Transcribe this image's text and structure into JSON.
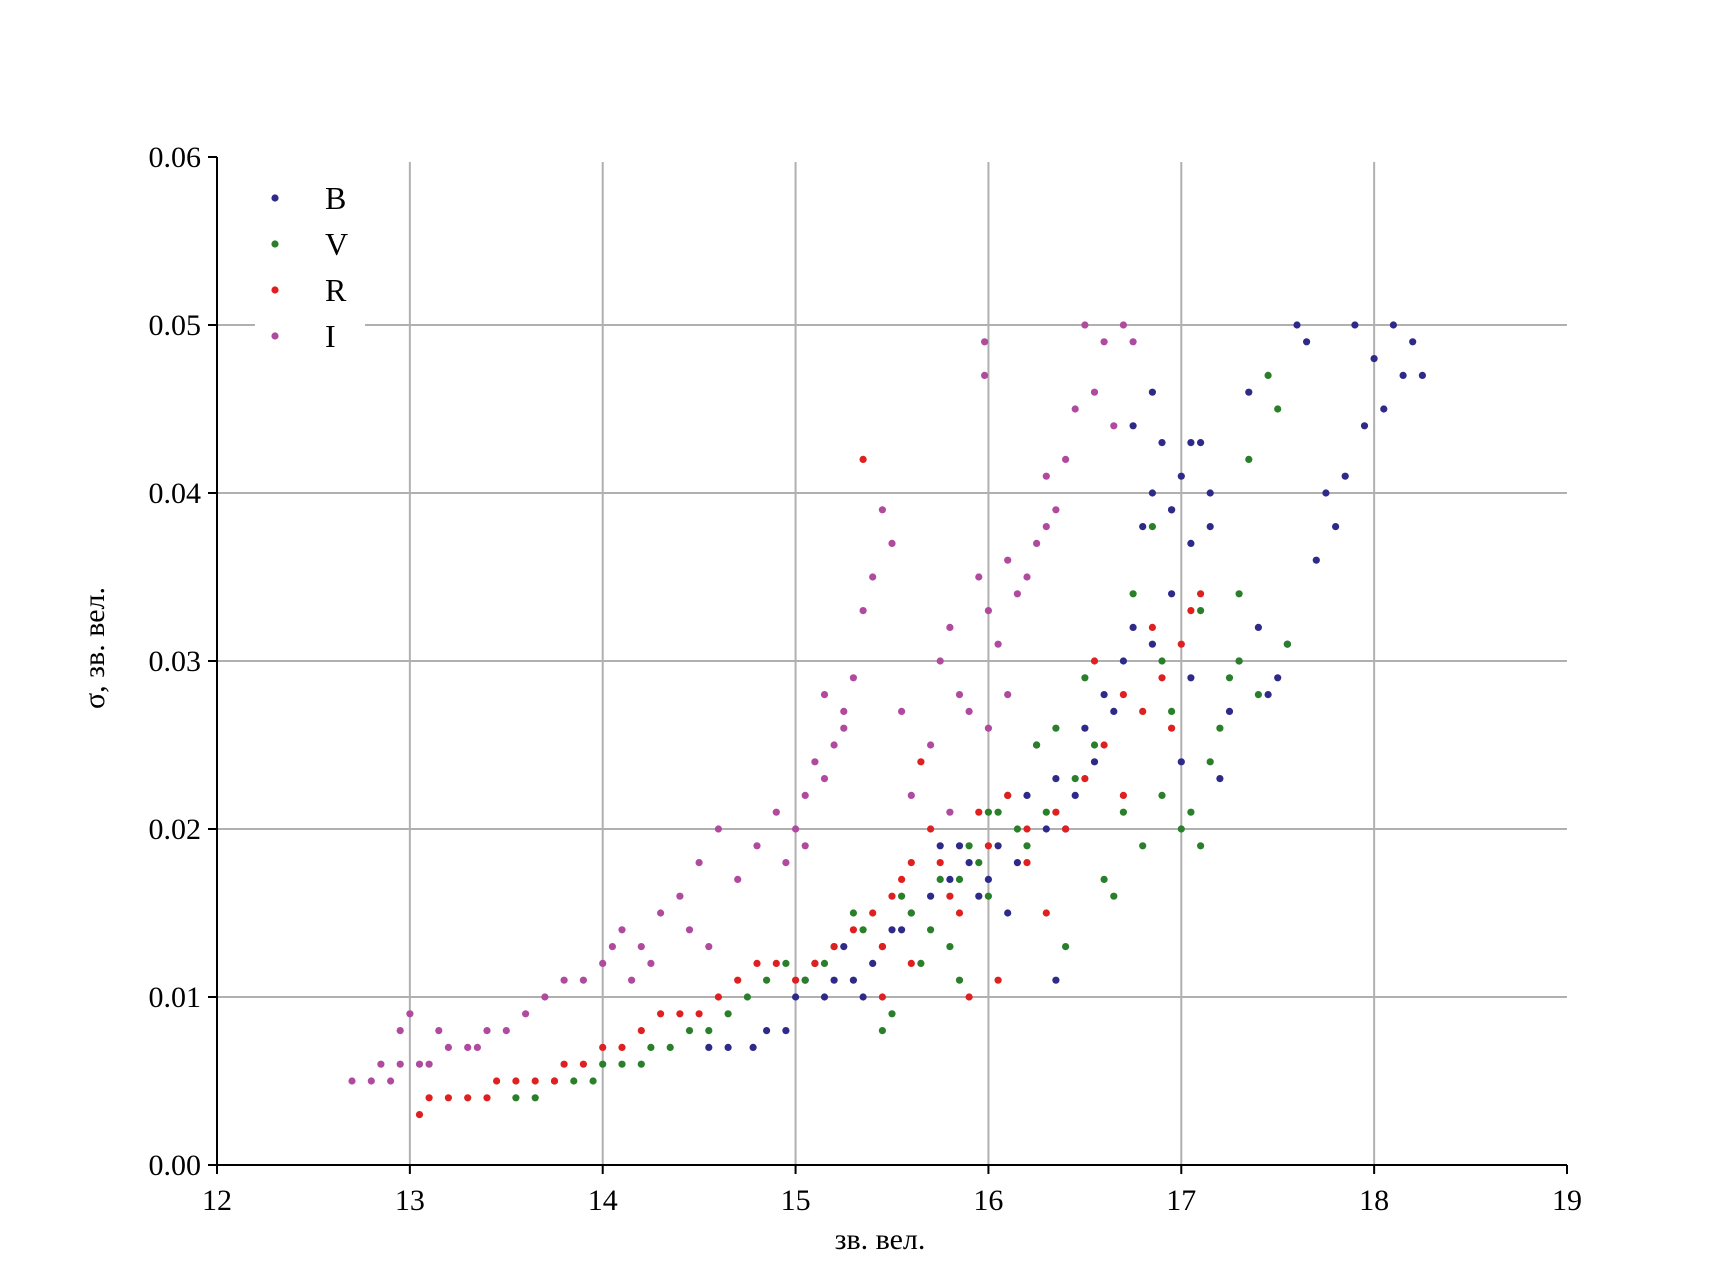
{
  "chart_data": {
    "type": "scatter",
    "title": "",
    "xlabel": "зв. вел.",
    "ylabel": "σ, зв. вел.",
    "xlim": [
      12,
      19
    ],
    "ylim": [
      0.0,
      0.06
    ],
    "x_ticks": [
      "12",
      "13",
      "14",
      "15",
      "16",
      "17",
      "18",
      "19"
    ],
    "y_ticks": [
      "0.00",
      "0.01",
      "0.02",
      "0.03",
      "0.04",
      "0.05",
      "0.06"
    ],
    "grid": true,
    "legend_position": "top-left",
    "series": [
      {
        "name": "B",
        "color": "#2e2a8a",
        "points": [
          [
            14.55,
            0.007
          ],
          [
            14.65,
            0.007
          ],
          [
            14.78,
            0.007
          ],
          [
            14.85,
            0.008
          ],
          [
            14.95,
            0.008
          ],
          [
            15.0,
            0.01
          ],
          [
            15.05,
            0.011
          ],
          [
            15.1,
            0.012
          ],
          [
            15.15,
            0.01
          ],
          [
            15.2,
            0.011
          ],
          [
            15.25,
            0.013
          ],
          [
            15.3,
            0.011
          ],
          [
            15.35,
            0.01
          ],
          [
            15.4,
            0.012
          ],
          [
            15.45,
            0.013
          ],
          [
            15.5,
            0.014
          ],
          [
            15.55,
            0.014
          ],
          [
            15.6,
            0.015
          ],
          [
            15.7,
            0.016
          ],
          [
            15.75,
            0.019
          ],
          [
            15.8,
            0.017
          ],
          [
            15.85,
            0.019
          ],
          [
            15.9,
            0.018
          ],
          [
            15.95,
            0.016
          ],
          [
            16.0,
            0.017
          ],
          [
            16.05,
            0.019
          ],
          [
            16.1,
            0.015
          ],
          [
            16.15,
            0.018
          ],
          [
            16.2,
            0.022
          ],
          [
            16.25,
            0.025
          ],
          [
            16.3,
            0.02
          ],
          [
            16.35,
            0.023
          ],
          [
            16.35,
            0.011
          ],
          [
            16.4,
            0.02
          ],
          [
            16.45,
            0.022
          ],
          [
            16.5,
            0.026
          ],
          [
            16.55,
            0.024
          ],
          [
            16.6,
            0.028
          ],
          [
            16.65,
            0.027
          ],
          [
            16.7,
            0.03
          ],
          [
            16.75,
            0.032
          ],
          [
            16.8,
            0.038
          ],
          [
            16.85,
            0.04
          ],
          [
            16.9,
            0.043
          ],
          [
            16.95,
            0.039
          ],
          [
            17.0,
            0.041
          ],
          [
            17.05,
            0.037
          ],
          [
            17.1,
            0.043
          ],
          [
            17.15,
            0.04
          ],
          [
            17.2,
            0.023
          ],
          [
            17.25,
            0.027
          ],
          [
            17.3,
            0.03
          ],
          [
            17.35,
            0.046
          ],
          [
            17.4,
            0.032
          ],
          [
            17.45,
            0.028
          ],
          [
            17.5,
            0.029
          ],
          [
            17.55,
            0.031
          ],
          [
            17.6,
            0.05
          ],
          [
            17.65,
            0.049
          ],
          [
            17.7,
            0.036
          ],
          [
            17.75,
            0.04
          ],
          [
            17.8,
            0.038
          ],
          [
            17.85,
            0.041
          ],
          [
            17.9,
            0.05
          ],
          [
            17.95,
            0.044
          ],
          [
            18.0,
            0.048
          ],
          [
            18.05,
            0.045
          ],
          [
            18.1,
            0.05
          ],
          [
            18.15,
            0.047
          ],
          [
            18.2,
            0.049
          ],
          [
            18.25,
            0.047
          ],
          [
            16.75,
            0.044
          ],
          [
            16.85,
            0.046
          ],
          [
            16.95,
            0.039
          ],
          [
            17.05,
            0.043
          ],
          [
            17.15,
            0.038
          ],
          [
            17.0,
            0.024
          ],
          [
            17.05,
            0.029
          ],
          [
            16.95,
            0.034
          ],
          [
            16.85,
            0.031
          ]
        ]
      },
      {
        "name": "V",
        "color": "#2a7f2a",
        "points": [
          [
            13.55,
            0.004
          ],
          [
            13.65,
            0.004
          ],
          [
            13.75,
            0.005
          ],
          [
            13.85,
            0.005
          ],
          [
            13.95,
            0.005
          ],
          [
            14.0,
            0.006
          ],
          [
            14.1,
            0.006
          ],
          [
            14.2,
            0.006
          ],
          [
            14.25,
            0.007
          ],
          [
            14.35,
            0.007
          ],
          [
            14.45,
            0.008
          ],
          [
            14.55,
            0.008
          ],
          [
            14.65,
            0.009
          ],
          [
            14.75,
            0.01
          ],
          [
            14.85,
            0.011
          ],
          [
            14.95,
            0.012
          ],
          [
            15.05,
            0.011
          ],
          [
            15.15,
            0.012
          ],
          [
            15.2,
            0.013
          ],
          [
            15.3,
            0.015
          ],
          [
            15.35,
            0.014
          ],
          [
            15.45,
            0.008
          ],
          [
            15.5,
            0.009
          ],
          [
            15.55,
            0.016
          ],
          [
            15.6,
            0.015
          ],
          [
            15.7,
            0.014
          ],
          [
            15.75,
            0.017
          ],
          [
            15.8,
            0.013
          ],
          [
            15.85,
            0.017
          ],
          [
            15.9,
            0.019
          ],
          [
            15.95,
            0.018
          ],
          [
            16.0,
            0.016
          ],
          [
            16.05,
            0.021
          ],
          [
            16.1,
            0.022
          ],
          [
            16.15,
            0.02
          ],
          [
            16.2,
            0.019
          ],
          [
            16.25,
            0.025
          ],
          [
            16.3,
            0.021
          ],
          [
            16.35,
            0.026
          ],
          [
            16.4,
            0.013
          ],
          [
            16.45,
            0.023
          ],
          [
            16.5,
            0.029
          ],
          [
            16.55,
            0.025
          ],
          [
            16.6,
            0.017
          ],
          [
            16.65,
            0.016
          ],
          [
            16.7,
            0.021
          ],
          [
            16.75,
            0.034
          ],
          [
            16.8,
            0.019
          ],
          [
            16.85,
            0.038
          ],
          [
            16.9,
            0.022
          ],
          [
            16.95,
            0.027
          ],
          [
            17.0,
            0.02
          ],
          [
            17.05,
            0.021
          ],
          [
            17.1,
            0.019
          ],
          [
            17.15,
            0.024
          ],
          [
            17.2,
            0.026
          ],
          [
            17.25,
            0.029
          ],
          [
            17.3,
            0.03
          ],
          [
            17.35,
            0.042
          ],
          [
            17.4,
            0.028
          ],
          [
            17.45,
            0.047
          ],
          [
            17.5,
            0.045
          ],
          [
            17.55,
            0.031
          ],
          [
            16.9,
            0.03
          ],
          [
            17.1,
            0.033
          ],
          [
            17.3,
            0.034
          ],
          [
            15.65,
            0.012
          ],
          [
            15.85,
            0.011
          ],
          [
            16.0,
            0.021
          ]
        ]
      },
      {
        "name": "R",
        "color": "#e02020",
        "points": [
          [
            13.05,
            0.003
          ],
          [
            13.1,
            0.004
          ],
          [
            13.2,
            0.004
          ],
          [
            13.3,
            0.004
          ],
          [
            13.4,
            0.004
          ],
          [
            13.45,
            0.005
          ],
          [
            13.55,
            0.005
          ],
          [
            13.65,
            0.005
          ],
          [
            13.75,
            0.005
          ],
          [
            13.8,
            0.006
          ],
          [
            13.9,
            0.006
          ],
          [
            14.0,
            0.007
          ],
          [
            14.1,
            0.007
          ],
          [
            14.2,
            0.008
          ],
          [
            14.3,
            0.009
          ],
          [
            14.4,
            0.009
          ],
          [
            14.5,
            0.009
          ],
          [
            14.6,
            0.01
          ],
          [
            14.7,
            0.011
          ],
          [
            14.8,
            0.012
          ],
          [
            14.9,
            0.012
          ],
          [
            15.0,
            0.011
          ],
          [
            15.1,
            0.012
          ],
          [
            15.2,
            0.013
          ],
          [
            15.3,
            0.014
          ],
          [
            15.35,
            0.042
          ],
          [
            15.4,
            0.015
          ],
          [
            15.45,
            0.013
          ],
          [
            15.5,
            0.016
          ],
          [
            15.55,
            0.017
          ],
          [
            15.6,
            0.018
          ],
          [
            15.65,
            0.024
          ],
          [
            15.7,
            0.02
          ],
          [
            15.75,
            0.018
          ],
          [
            15.8,
            0.016
          ],
          [
            15.85,
            0.015
          ],
          [
            15.9,
            0.01
          ],
          [
            15.95,
            0.021
          ],
          [
            16.0,
            0.019
          ],
          [
            16.05,
            0.011
          ],
          [
            16.1,
            0.022
          ],
          [
            16.2,
            0.018
          ],
          [
            16.3,
            0.015
          ],
          [
            16.4,
            0.02
          ],
          [
            16.5,
            0.023
          ],
          [
            16.6,
            0.025
          ],
          [
            16.7,
            0.022
          ],
          [
            16.8,
            0.027
          ],
          [
            16.9,
            0.029
          ],
          [
            17.0,
            0.031
          ],
          [
            17.05,
            0.033
          ],
          [
            17.1,
            0.034
          ],
          [
            16.55,
            0.03
          ],
          [
            16.7,
            0.028
          ],
          [
            16.85,
            0.032
          ],
          [
            16.95,
            0.026
          ],
          [
            15.45,
            0.01
          ],
          [
            15.6,
            0.012
          ],
          [
            16.2,
            0.02
          ],
          [
            16.35,
            0.021
          ]
        ]
      },
      {
        "name": "I",
        "color": "#b04a9e",
        "points": [
          [
            12.7,
            0.005
          ],
          [
            12.8,
            0.005
          ],
          [
            12.9,
            0.005
          ],
          [
            12.85,
            0.006
          ],
          [
            12.95,
            0.006
          ],
          [
            13.05,
            0.006
          ],
          [
            13.1,
            0.006
          ],
          [
            13.2,
            0.007
          ],
          [
            13.3,
            0.007
          ],
          [
            13.4,
            0.008
          ],
          [
            13.5,
            0.008
          ],
          [
            13.6,
            0.009
          ],
          [
            13.7,
            0.01
          ],
          [
            13.8,
            0.011
          ],
          [
            13.9,
            0.011
          ],
          [
            14.0,
            0.012
          ],
          [
            14.05,
            0.013
          ],
          [
            14.1,
            0.014
          ],
          [
            14.2,
            0.013
          ],
          [
            14.3,
            0.015
          ],
          [
            14.4,
            0.016
          ],
          [
            14.5,
            0.018
          ],
          [
            14.6,
            0.02
          ],
          [
            14.7,
            0.017
          ],
          [
            14.8,
            0.019
          ],
          [
            14.9,
            0.021
          ],
          [
            15.0,
            0.02
          ],
          [
            15.05,
            0.022
          ],
          [
            15.1,
            0.024
          ],
          [
            15.15,
            0.023
          ],
          [
            15.2,
            0.025
          ],
          [
            15.25,
            0.027
          ],
          [
            15.3,
            0.029
          ],
          [
            15.35,
            0.033
          ],
          [
            15.4,
            0.035
          ],
          [
            15.45,
            0.039
          ],
          [
            15.5,
            0.037
          ],
          [
            15.55,
            0.027
          ],
          [
            15.6,
            0.022
          ],
          [
            15.7,
            0.025
          ],
          [
            15.75,
            0.03
          ],
          [
            15.8,
            0.032
          ],
          [
            15.85,
            0.028
          ],
          [
            15.9,
            0.027
          ],
          [
            15.95,
            0.035
          ],
          [
            15.98,
            0.047
          ],
          [
            15.98,
            0.049
          ],
          [
            16.0,
            0.033
          ],
          [
            16.05,
            0.031
          ],
          [
            16.1,
            0.028
          ],
          [
            16.15,
            0.034
          ],
          [
            16.2,
            0.035
          ],
          [
            16.25,
            0.037
          ],
          [
            16.3,
            0.041
          ],
          [
            16.35,
            0.039
          ],
          [
            16.4,
            0.042
          ],
          [
            16.45,
            0.045
          ],
          [
            16.5,
            0.05
          ],
          [
            16.55,
            0.046
          ],
          [
            16.6,
            0.049
          ],
          [
            16.65,
            0.044
          ],
          [
            16.7,
            0.05
          ],
          [
            16.75,
            0.049
          ],
          [
            13.0,
            0.009
          ],
          [
            13.15,
            0.008
          ],
          [
            13.35,
            0.007
          ],
          [
            12.95,
            0.008
          ],
          [
            14.15,
            0.011
          ],
          [
            14.25,
            0.012
          ],
          [
            14.45,
            0.014
          ],
          [
            14.55,
            0.013
          ],
          [
            14.95,
            0.018
          ],
          [
            15.05,
            0.019
          ],
          [
            15.15,
            0.028
          ],
          [
            15.25,
            0.026
          ],
          [
            15.8,
            0.021
          ],
          [
            16.0,
            0.026
          ],
          [
            16.1,
            0.036
          ],
          [
            16.3,
            0.038
          ]
        ]
      }
    ]
  }
}
